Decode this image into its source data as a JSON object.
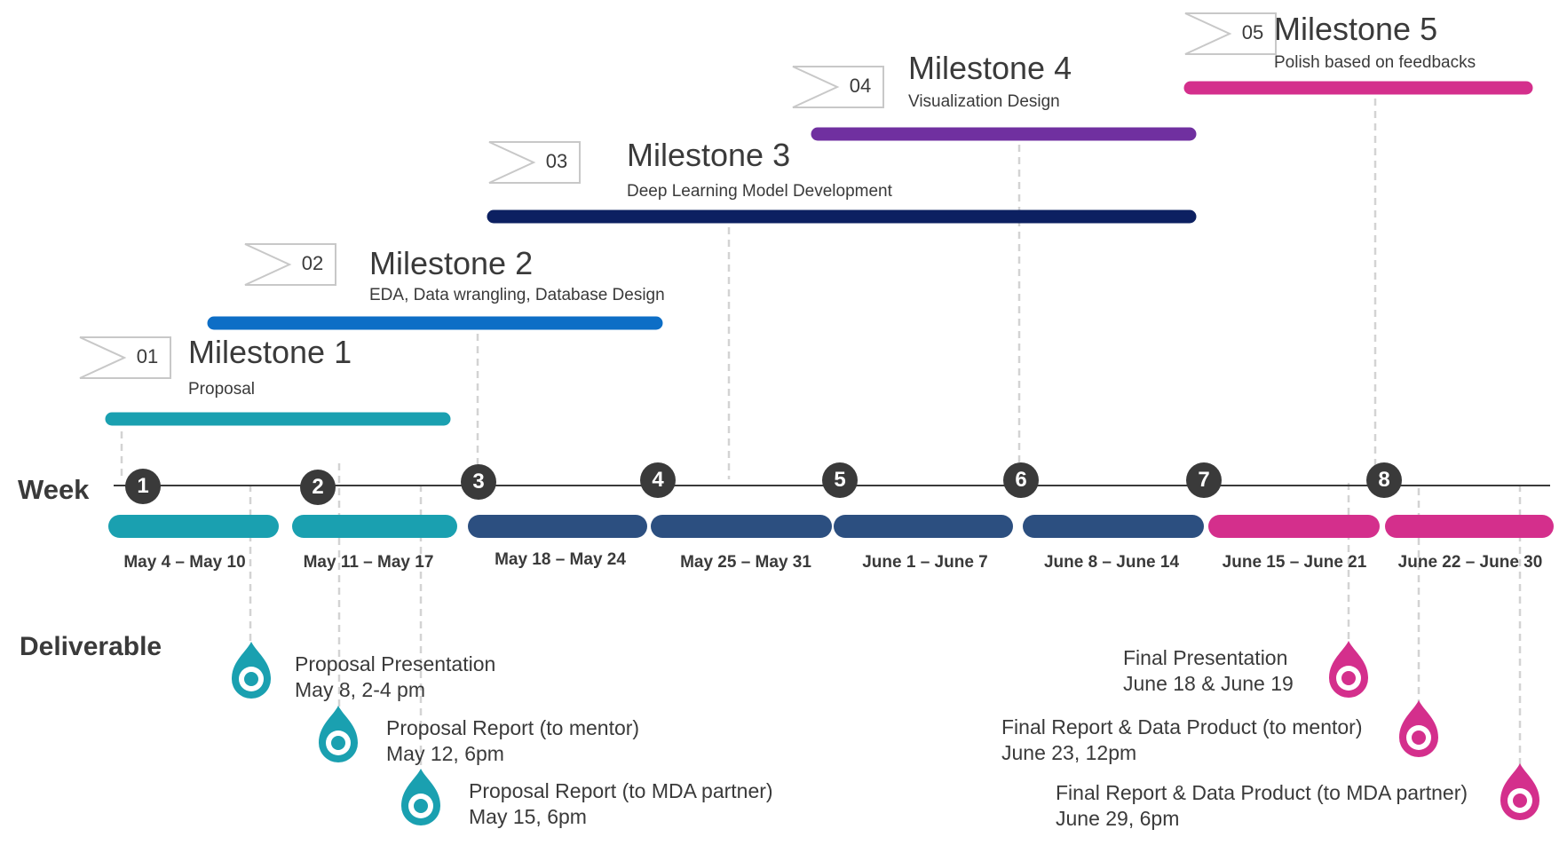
{
  "timeline": {
    "week_label": "Week",
    "deliverable_label": "Deliverable",
    "weeks": [
      {
        "num": "1",
        "range": "May 4 – May 10",
        "color": "#1aa0b0"
      },
      {
        "num": "2",
        "range": "May 11 – May 17",
        "color": "#1aa0b0"
      },
      {
        "num": "3",
        "range": "May 18 – May 24",
        "color": "#2c4f80"
      },
      {
        "num": "4",
        "range": "May 25 –  May 31",
        "color": "#2c4f80"
      },
      {
        "num": "5",
        "range": "June 1 – June 7",
        "color": "#2c4f80"
      },
      {
        "num": "6",
        "range": "June 8 – June 14",
        "color": "#2c4f80"
      },
      {
        "num": "7",
        "range": "June 15 – June 21",
        "color": "#d42f8c"
      },
      {
        "num": "8",
        "range": "June 22 – June 30",
        "color": "#d42f8c"
      }
    ]
  },
  "milestones": [
    {
      "tag": "01",
      "title": "Milestone 1",
      "subtitle": "Proposal",
      "color": "#1aa0b0"
    },
    {
      "tag": "02",
      "title": "Milestone 2",
      "subtitle": "EDA, Data wrangling, Database Design",
      "color": "#0d6ec6"
    },
    {
      "tag": "03",
      "title": "Milestone 3",
      "subtitle": "Deep Learning Model Development",
      "color": "#0c2061"
    },
    {
      "tag": "04",
      "title": "Milestone 4",
      "subtitle": "Visualization Design",
      "color": "#7030a0"
    },
    {
      "tag": "05",
      "title": "Milestone 5",
      "subtitle": "Polish based on feedbacks",
      "color": "#d42f8c"
    }
  ],
  "deliverables": [
    {
      "name": "Proposal Presentation",
      "date": "May 8, 2-4 pm",
      "color": "#1aa0b0"
    },
    {
      "name": "Proposal Report (to mentor)",
      "date": "May 12, 6pm",
      "color": "#1aa0b0"
    },
    {
      "name": "Proposal Report (to MDA partner)",
      "date": "May 15, 6pm",
      "color": "#1aa0b0"
    },
    {
      "name": "Final Presentation",
      "date": "June 18 & June 19",
      "color": "#d42f8c"
    },
    {
      "name": "Final Report  & Data Product (to mentor)",
      "date": "June 23, 12pm",
      "color": "#d42f8c"
    },
    {
      "name": "Final Report  & Data Product (to MDA partner)",
      "date": "June 29, 6pm",
      "color": "#d42f8c"
    }
  ],
  "icons": {
    "tag": "chevron-tag-icon",
    "pin": "location-pin-icon"
  }
}
